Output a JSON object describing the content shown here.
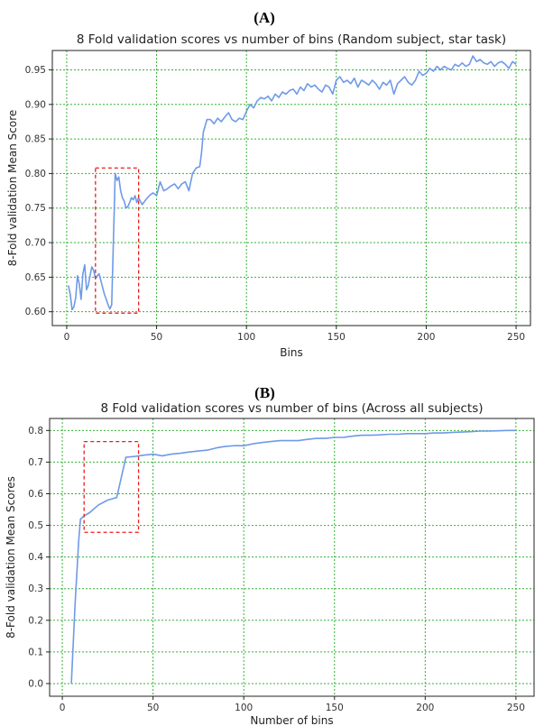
{
  "colors": {
    "line": "#6e9ae8",
    "grid": "#34b233",
    "highlight": "#ee1c1c",
    "axis": "#222222"
  },
  "chart_data": [
    {
      "panel_label": "(A)",
      "type": "line",
      "title": "8 Fold validation scores vs number of bins (Random subject, star task)",
      "xlabel": "Bins",
      "ylabel": "8-Fold validation Mean Score",
      "xlim": [
        -8,
        258
      ],
      "ylim": [
        0.58,
        0.978
      ],
      "xticks": [
        0,
        50,
        100,
        150,
        200,
        250
      ],
      "yticks": [
        0.6,
        0.65,
        0.7,
        0.75,
        0.8,
        0.85,
        0.9,
        0.95
      ],
      "ytick_labels": [
        "0.60",
        "0.65",
        "0.70",
        "0.75",
        "0.80",
        "0.85",
        "0.90",
        "0.95"
      ],
      "grid": true,
      "highlight_box": {
        "x": [
          16,
          40
        ],
        "y": [
          0.598,
          0.808
        ]
      },
      "series": [
        {
          "x": [
            1,
            2,
            3,
            4,
            5,
            6,
            7,
            8,
            9,
            10,
            11,
            12,
            13,
            14,
            15,
            16,
            17,
            18,
            19,
            20,
            21,
            22,
            23,
            24,
            25,
            26,
            27,
            28,
            29,
            30,
            31,
            32,
            33,
            34,
            35,
            36,
            37,
            38,
            39,
            40,
            42,
            44,
            46,
            48,
            50,
            52,
            54,
            56,
            58,
            60,
            62,
            64,
            66,
            68,
            70,
            72,
            74,
            75,
            76,
            78,
            80,
            82,
            84,
            86,
            88,
            90,
            92,
            94,
            96,
            98,
            100,
            102,
            104,
            106,
            108,
            110,
            112,
            114,
            116,
            118,
            120,
            122,
            124,
            126,
            128,
            130,
            132,
            134,
            136,
            138,
            140,
            142,
            144,
            146,
            148,
            150,
            152,
            154,
            156,
            158,
            160,
            162,
            164,
            166,
            168,
            170,
            172,
            174,
            176,
            178,
            180,
            182,
            184,
            186,
            188,
            190,
            192,
            194,
            196,
            198,
            200,
            202,
            204,
            206,
            208,
            210,
            212,
            214,
            216,
            218,
            220,
            222,
            224,
            226,
            228,
            230,
            232,
            234,
            236,
            238,
            240,
            242,
            244,
            246,
            248,
            250
          ],
          "y": [
            0.638,
            0.625,
            0.603,
            0.607,
            0.62,
            0.652,
            0.64,
            0.618,
            0.655,
            0.668,
            0.632,
            0.638,
            0.652,
            0.665,
            0.66,
            0.648,
            0.652,
            0.655,
            0.645,
            0.635,
            0.625,
            0.618,
            0.61,
            0.604,
            0.61,
            0.702,
            0.8,
            0.79,
            0.795,
            0.775,
            0.765,
            0.76,
            0.75,
            0.752,
            0.758,
            0.765,
            0.762,
            0.768,
            0.758,
            0.765,
            0.755,
            0.762,
            0.768,
            0.772,
            0.768,
            0.788,
            0.775,
            0.778,
            0.782,
            0.785,
            0.778,
            0.785,
            0.788,
            0.775,
            0.8,
            0.808,
            0.81,
            0.83,
            0.86,
            0.878,
            0.878,
            0.872,
            0.88,
            0.875,
            0.882,
            0.888,
            0.878,
            0.875,
            0.88,
            0.878,
            0.89,
            0.9,
            0.895,
            0.905,
            0.91,
            0.908,
            0.912,
            0.905,
            0.915,
            0.91,
            0.918,
            0.915,
            0.92,
            0.922,
            0.915,
            0.925,
            0.92,
            0.93,
            0.925,
            0.928,
            0.922,
            0.918,
            0.928,
            0.925,
            0.915,
            0.935,
            0.94,
            0.932,
            0.935,
            0.93,
            0.938,
            0.925,
            0.935,
            0.932,
            0.928,
            0.935,
            0.93,
            0.922,
            0.932,
            0.928,
            0.935,
            0.915,
            0.93,
            0.935,
            0.94,
            0.932,
            0.928,
            0.935,
            0.948,
            0.942,
            0.945,
            0.952,
            0.948,
            0.955,
            0.95,
            0.955,
            0.952,
            0.95,
            0.958,
            0.955,
            0.96,
            0.955,
            0.958,
            0.97,
            0.962,
            0.965,
            0.96,
            0.958,
            0.962,
            0.955,
            0.96,
            0.962,
            0.958,
            0.952,
            0.962,
            0.958
          ]
        }
      ]
    },
    {
      "panel_label": "(B)",
      "type": "line",
      "title": "8 Fold validation scores vs number of bins (Across all subjects)",
      "xlabel": "Number of bins",
      "ylabel": "8-Fold validation Mean Scores",
      "xlim": [
        -7,
        260
      ],
      "ylim": [
        -0.04,
        0.838
      ],
      "xticks": [
        0,
        50,
        100,
        150,
        200,
        250
      ],
      "yticks": [
        0.0,
        0.1,
        0.2,
        0.3,
        0.4,
        0.5,
        0.6,
        0.7,
        0.8
      ],
      "ytick_labels": [
        "0.0",
        "0.1",
        "0.2",
        "0.3",
        "0.4",
        "0.5",
        "0.6",
        "0.7",
        "0.8"
      ],
      "grid": true,
      "highlight_box": {
        "x": [
          12,
          42
        ],
        "y": [
          0.478,
          0.765
        ]
      },
      "series": [
        {
          "x": [
            5,
            7,
            9,
            10,
            12,
            15,
            20,
            25,
            30,
            35,
            40,
            45,
            50,
            55,
            60,
            65,
            70,
            75,
            80,
            85,
            90,
            95,
            100,
            105,
            110,
            115,
            120,
            125,
            130,
            135,
            140,
            145,
            150,
            155,
            160,
            165,
            170,
            175,
            180,
            185,
            190,
            195,
            200,
            205,
            210,
            215,
            220,
            225,
            230,
            235,
            240,
            245,
            250
          ],
          "y": [
            0.0,
            0.25,
            0.45,
            0.52,
            0.53,
            0.54,
            0.565,
            0.58,
            0.588,
            0.715,
            0.718,
            0.722,
            0.725,
            0.72,
            0.725,
            0.728,
            0.732,
            0.735,
            0.738,
            0.745,
            0.75,
            0.752,
            0.752,
            0.758,
            0.762,
            0.765,
            0.768,
            0.768,
            0.768,
            0.772,
            0.775,
            0.775,
            0.778,
            0.778,
            0.782,
            0.785,
            0.785,
            0.786,
            0.788,
            0.788,
            0.79,
            0.79,
            0.79,
            0.792,
            0.792,
            0.794,
            0.795,
            0.796,
            0.798,
            0.798,
            0.799,
            0.8,
            0.8
          ]
        }
      ]
    }
  ]
}
